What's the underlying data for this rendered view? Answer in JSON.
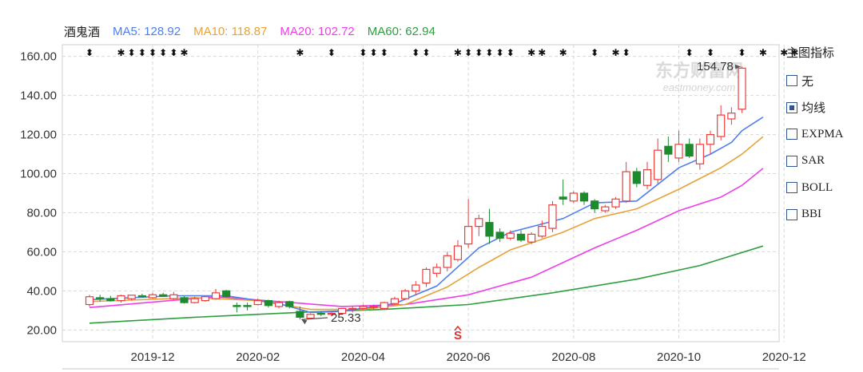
{
  "header": {
    "name": "酒鬼酒",
    "ma": [
      {
        "label": "MA5: 128.92",
        "color": "#4f7ef0"
      },
      {
        "label": "MA10: 118.87",
        "color": "#e8a23a"
      },
      {
        "label": "MA20: 102.72",
        "color": "#ee3ee8"
      },
      {
        "label": "MA60: 62.94",
        "color": "#2e9e3e"
      }
    ]
  },
  "panel": {
    "title": "主图指标",
    "options": [
      {
        "label": "无",
        "checked": false
      },
      {
        "label": "均线",
        "checked": true
      },
      {
        "label": "EXPMA",
        "checked": false
      },
      {
        "label": "SAR",
        "checked": false
      },
      {
        "label": "BOLL",
        "checked": false
      },
      {
        "label": "BBI",
        "checked": false
      }
    ]
  },
  "watermark": {
    "brand": "东方财富网",
    "site": "eastmoney.com"
  },
  "chart_data": {
    "type": "candlestick",
    "ylim": [
      14,
      166
    ],
    "yticks": [
      "20.00",
      "40.00",
      "60.00",
      "80.00",
      "100.00",
      "120.00",
      "140.00",
      "160.00"
    ],
    "xticks": [
      "2019-12",
      "2020-02",
      "2020-04",
      "2020-06",
      "2020-08",
      "2020-10",
      "2020-12"
    ],
    "xtick_index": [
      6,
      16,
      26,
      36,
      46,
      56,
      66
    ],
    "colors": {
      "up": "#ee3c3c",
      "down": "#1e8a2e",
      "ma5": "#4f7ef0",
      "ma10": "#e8a23a",
      "ma20": "#ee3ee8",
      "ma60": "#2e9e3e"
    },
    "candles": [
      {
        "o": 33.0,
        "h": 38.0,
        "l": 32.0,
        "c": 37.0
      },
      {
        "o": 36.5,
        "h": 38.0,
        "l": 34.5,
        "c": 36.0
      },
      {
        "o": 36.0,
        "h": 37.5,
        "l": 34.5,
        "c": 35.0
      },
      {
        "o": 35.0,
        "h": 38.0,
        "l": 34.0,
        "c": 37.5
      },
      {
        "o": 36.0,
        "h": 38.0,
        "l": 35.0,
        "c": 37.8
      },
      {
        "o": 37.5,
        "h": 38.5,
        "l": 36.5,
        "c": 37.0
      },
      {
        "o": 36.5,
        "h": 39.0,
        "l": 36.0,
        "c": 38.0
      },
      {
        "o": 38.0,
        "h": 39.0,
        "l": 37.0,
        "c": 37.2
      },
      {
        "o": 36.0,
        "h": 39.5,
        "l": 35.5,
        "c": 38.0
      },
      {
        "o": 36.5,
        "h": 37.5,
        "l": 33.5,
        "c": 34.0
      },
      {
        "o": 34.0,
        "h": 37.0,
        "l": 33.5,
        "c": 36.0
      },
      {
        "o": 35.0,
        "h": 37.5,
        "l": 34.5,
        "c": 37.0
      },
      {
        "o": 36.0,
        "h": 41.0,
        "l": 35.5,
        "c": 39.0
      },
      {
        "o": 40.0,
        "h": 40.5,
        "l": 36.5,
        "c": 37.0
      },
      {
        "o": 32.5,
        "h": 34.0,
        "l": 29.0,
        "c": 32.0
      },
      {
        "o": 32.5,
        "h": 34.0,
        "l": 30.0,
        "c": 32.0
      },
      {
        "o": 33.0,
        "h": 36.0,
        "l": 32.5,
        "c": 35.0
      },
      {
        "o": 35.0,
        "h": 35.5,
        "l": 31.5,
        "c": 32.5
      },
      {
        "o": 32.0,
        "h": 35.0,
        "l": 31.0,
        "c": 34.0
      },
      {
        "o": 34.5,
        "h": 35.0,
        "l": 31.0,
        "c": 32.0
      },
      {
        "o": 29.5,
        "h": 32.0,
        "l": 25.33,
        "c": 26.5
      },
      {
        "o": 26.0,
        "h": 28.5,
        "l": 25.5,
        "c": 28.0
      },
      {
        "o": 28.5,
        "h": 29.5,
        "l": 27.0,
        "c": 28.0
      },
      {
        "o": 28.0,
        "h": 29.0,
        "l": 27.0,
        "c": 28.5
      },
      {
        "o": 28.5,
        "h": 31.0,
        "l": 28.0,
        "c": 31.0
      },
      {
        "o": 30.5,
        "h": 32.0,
        "l": 29.0,
        "c": 31.0
      },
      {
        "o": 31.0,
        "h": 33.0,
        "l": 30.0,
        "c": 32.0
      },
      {
        "o": 31.5,
        "h": 33.0,
        "l": 30.5,
        "c": 32.0
      },
      {
        "o": 31.0,
        "h": 34.5,
        "l": 30.5,
        "c": 34.0
      },
      {
        "o": 33.5,
        "h": 37.0,
        "l": 33.0,
        "c": 36.0
      },
      {
        "o": 36.0,
        "h": 41.0,
        "l": 35.5,
        "c": 40.0
      },
      {
        "o": 40.0,
        "h": 45.0,
        "l": 38.0,
        "c": 43.0
      },
      {
        "o": 44.0,
        "h": 52.0,
        "l": 42.0,
        "c": 51.0
      },
      {
        "o": 49.0,
        "h": 54.0,
        "l": 47.0,
        "c": 52.0
      },
      {
        "o": 52.0,
        "h": 60.0,
        "l": 50.0,
        "c": 58.0
      },
      {
        "o": 56.0,
        "h": 66.0,
        "l": 55.0,
        "c": 63.0
      },
      {
        "o": 64.0,
        "h": 87.0,
        "l": 62.0,
        "c": 73.0
      },
      {
        "o": 73.0,
        "h": 79.0,
        "l": 68.0,
        "c": 77.0
      },
      {
        "o": 75.0,
        "h": 82.0,
        "l": 64.0,
        "c": 68.0
      },
      {
        "o": 70.0,
        "h": 72.0,
        "l": 65.0,
        "c": 67.0
      },
      {
        "o": 67.0,
        "h": 71.0,
        "l": 66.0,
        "c": 69.5
      },
      {
        "o": 69.0,
        "h": 71.0,
        "l": 65.0,
        "c": 66.0
      },
      {
        "o": 65.0,
        "h": 70.0,
        "l": 64.0,
        "c": 69.0
      },
      {
        "o": 68.0,
        "h": 76.0,
        "l": 67.0,
        "c": 73.0
      },
      {
        "o": 72.0,
        "h": 86.0,
        "l": 70.0,
        "c": 84.0
      },
      {
        "o": 88.0,
        "h": 97.0,
        "l": 84.0,
        "c": 87.0
      },
      {
        "o": 86.0,
        "h": 91.0,
        "l": 85.0,
        "c": 90.0
      },
      {
        "o": 90.0,
        "h": 91.0,
        "l": 84.0,
        "c": 86.0
      },
      {
        "o": 86.0,
        "h": 87.0,
        "l": 80.0,
        "c": 82.0
      },
      {
        "o": 81.0,
        "h": 84.0,
        "l": 80.0,
        "c": 83.0
      },
      {
        "o": 83.0,
        "h": 88.0,
        "l": 82.0,
        "c": 87.0
      },
      {
        "o": 86.0,
        "h": 106.0,
        "l": 85.0,
        "c": 101.0
      },
      {
        "o": 101.0,
        "h": 103.0,
        "l": 93.0,
        "c": 95.0
      },
      {
        "o": 94.0,
        "h": 106.0,
        "l": 92.0,
        "c": 102.0
      },
      {
        "o": 97.0,
        "h": 118.0,
        "l": 95.0,
        "c": 112.0
      },
      {
        "o": 114.0,
        "h": 119.0,
        "l": 106.0,
        "c": 110.0
      },
      {
        "o": 108.0,
        "h": 122.0,
        "l": 106.0,
        "c": 115.0
      },
      {
        "o": 115.0,
        "h": 118.0,
        "l": 108.0,
        "c": 109.0
      },
      {
        "o": 105.0,
        "h": 118.0,
        "l": 102.0,
        "c": 115.0
      },
      {
        "o": 115.0,
        "h": 122.0,
        "l": 110.0,
        "c": 120.0
      },
      {
        "o": 119.0,
        "h": 135.0,
        "l": 117.0,
        "c": 130.0
      },
      {
        "o": 128.0,
        "h": 134.0,
        "l": 125.0,
        "c": 131.0
      },
      {
        "o": 133.0,
        "h": 154.78,
        "l": 131.0,
        "c": 154.0
      }
    ],
    "ma5": [
      [
        0,
        35.5
      ],
      [
        8,
        37.5
      ],
      [
        13,
        37.5
      ],
      [
        18,
        33.5
      ],
      [
        21,
        29.0
      ],
      [
        24,
        29.5
      ],
      [
        29,
        33.5
      ],
      [
        33,
        42.5
      ],
      [
        37,
        62.0
      ],
      [
        40,
        70.0
      ],
      [
        45,
        77.0
      ],
      [
        48,
        85.0
      ],
      [
        52,
        86.0
      ],
      [
        56,
        103.0
      ],
      [
        59,
        110.0
      ],
      [
        61,
        116.0
      ],
      [
        62,
        122.0
      ],
      [
        64,
        128.92
      ]
    ],
    "ma10": [
      [
        0,
        34.5
      ],
      [
        10,
        36.5
      ],
      [
        16,
        35.0
      ],
      [
        21,
        30.5
      ],
      [
        26,
        30.5
      ],
      [
        30,
        33.0
      ],
      [
        34,
        42.0
      ],
      [
        37,
        52.0
      ],
      [
        40,
        61.0
      ],
      [
        45,
        70.0
      ],
      [
        48,
        77.0
      ],
      [
        52,
        82.0
      ],
      [
        56,
        92.0
      ],
      [
        60,
        103.0
      ],
      [
        62,
        110.0
      ],
      [
        64,
        118.87
      ]
    ],
    "ma20": [
      [
        0,
        31.5
      ],
      [
        12,
        37.0
      ],
      [
        18,
        34.5
      ],
      [
        24,
        32.0
      ],
      [
        30,
        33.0
      ],
      [
        36,
        38.0
      ],
      [
        42,
        47.0
      ],
      [
        48,
        62.0
      ],
      [
        52,
        71.0
      ],
      [
        56,
        81.0
      ],
      [
        60,
        88.0
      ],
      [
        62,
        94.0
      ],
      [
        64,
        102.72
      ]
    ],
    "ma60": [
      [
        0,
        23.5
      ],
      [
        10,
        26.5
      ],
      [
        20,
        29.0
      ],
      [
        28,
        30.5
      ],
      [
        36,
        33.0
      ],
      [
        44,
        39.0
      ],
      [
        52,
        46.0
      ],
      [
        58,
        53.0
      ],
      [
        64,
        62.94
      ]
    ],
    "markers": [
      {
        "i": 0,
        "s": "⬍"
      },
      {
        "i": 3,
        "s": "✱"
      },
      {
        "i": 4,
        "s": "⬍"
      },
      {
        "i": 5,
        "s": "⬍"
      },
      {
        "i": 6,
        "s": "⬍"
      },
      {
        "i": 7,
        "s": "⬍"
      },
      {
        "i": 8,
        "s": "⬍"
      },
      {
        "i": 9,
        "s": "✱"
      },
      {
        "i": 20,
        "s": "✱"
      },
      {
        "i": 23,
        "s": "⬍"
      },
      {
        "i": 26,
        "s": "⬍"
      },
      {
        "i": 27,
        "s": "⬍"
      },
      {
        "i": 28,
        "s": "⬍"
      },
      {
        "i": 31,
        "s": "⬍"
      },
      {
        "i": 32,
        "s": "⬍"
      },
      {
        "i": 35,
        "s": "✱"
      },
      {
        "i": 36,
        "s": "⬍"
      },
      {
        "i": 37,
        "s": "⬍"
      },
      {
        "i": 38,
        "s": "⬍"
      },
      {
        "i": 39,
        "s": "⬍"
      },
      {
        "i": 40,
        "s": "⬍"
      },
      {
        "i": 42,
        "s": "✱"
      },
      {
        "i": 43,
        "s": "✱"
      },
      {
        "i": 45,
        "s": "✱"
      },
      {
        "i": 48,
        "s": "⬍"
      },
      {
        "i": 50,
        "s": "✱"
      },
      {
        "i": 51,
        "s": "⬍"
      },
      {
        "i": 57,
        "s": "⬍"
      },
      {
        "i": 59,
        "s": "⬍"
      },
      {
        "i": 62,
        "s": "⬍"
      },
      {
        "i": 64,
        "s": "✱"
      },
      {
        "i": 66,
        "s": "✱"
      },
      {
        "i": 67,
        "s": "✱"
      }
    ],
    "annotations": [
      {
        "label": "154.78",
        "i": 64,
        "v": 154.78
      },
      {
        "label": "25.33",
        "i": 20,
        "v": 25.33
      }
    ],
    "signal": {
      "label": "S",
      "i": 35
    }
  }
}
